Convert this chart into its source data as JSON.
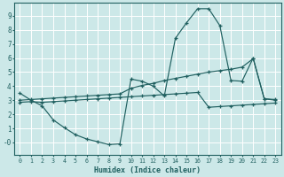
{
  "xlabel": "Humidex (Indice chaleur)",
  "xlim": [
    -0.5,
    23.5
  ],
  "ylim": [
    -0.9,
    9.9
  ],
  "xticks": [
    0,
    1,
    2,
    3,
    4,
    5,
    6,
    7,
    8,
    9,
    10,
    11,
    12,
    13,
    14,
    15,
    16,
    17,
    18,
    19,
    20,
    21,
    22,
    23
  ],
  "yticks": [
    0,
    1,
    2,
    3,
    4,
    5,
    6,
    7,
    8,
    9
  ],
  "ytick_labels": [
    "-0",
    "1",
    "2",
    "3",
    "4",
    "5",
    "6",
    "7",
    "8",
    "9"
  ],
  "bg_color": "#cce8e8",
  "line_color": "#206060",
  "grid_color": "#ffffff",
  "line1_x": [
    0,
    1,
    2,
    3,
    4,
    5,
    6,
    7,
    8,
    9,
    10,
    11,
    12,
    13,
    14,
    15,
    16,
    17,
    18,
    19,
    20,
    21,
    22,
    23
  ],
  "line1_y": [
    3.5,
    3.0,
    2.6,
    1.6,
    1.05,
    0.55,
    0.25,
    0.05,
    -0.15,
    -0.1,
    4.5,
    4.35,
    4.0,
    3.3,
    7.4,
    8.5,
    9.5,
    9.5,
    8.3,
    4.4,
    4.35,
    6.0,
    3.1,
    3.0
  ],
  "line2_x": [
    0,
    1,
    2,
    3,
    4,
    5,
    6,
    7,
    8,
    9,
    10,
    11,
    12,
    13,
    14,
    15,
    16,
    17,
    18,
    19,
    20,
    21,
    22,
    23
  ],
  "line2_y": [
    3.0,
    3.05,
    3.1,
    3.15,
    3.2,
    3.25,
    3.3,
    3.35,
    3.4,
    3.45,
    3.85,
    4.05,
    4.2,
    4.4,
    4.55,
    4.7,
    4.85,
    5.0,
    5.1,
    5.2,
    5.35,
    5.95,
    3.1,
    3.05
  ],
  "line3_x": [
    0,
    1,
    2,
    3,
    4,
    5,
    6,
    7,
    8,
    9,
    10,
    11,
    12,
    13,
    14,
    15,
    16,
    17,
    18,
    19,
    20,
    21,
    22,
    23
  ],
  "line3_y": [
    2.85,
    2.9,
    2.85,
    2.9,
    2.95,
    3.0,
    3.05,
    3.1,
    3.15,
    3.2,
    3.25,
    3.3,
    3.35,
    3.4,
    3.45,
    3.5,
    3.55,
    2.5,
    2.55,
    2.6,
    2.65,
    2.7,
    2.75,
    2.8
  ]
}
